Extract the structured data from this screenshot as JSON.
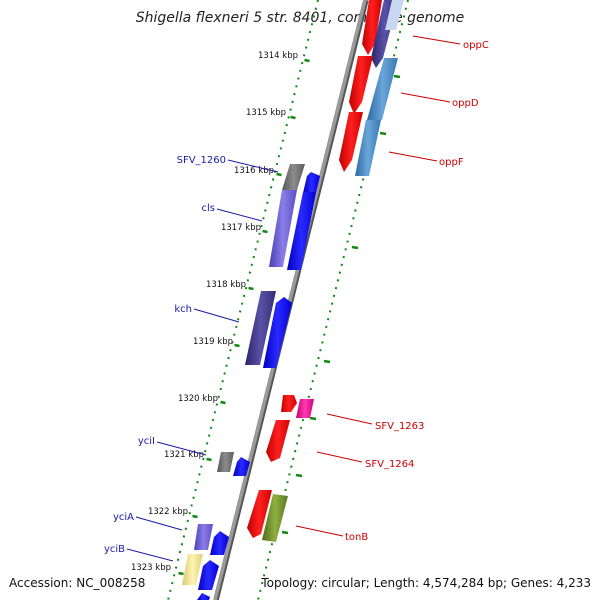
{
  "title": "Shigella flexneri 5 str. 8401, complete genome",
  "footer": {
    "accession": "Accession: NC_008258",
    "topology": "Topology: circular; Length: 4,574,284 bp; Genes: 4,233"
  },
  "ticks": [
    {
      "label": "1314 kbp"
    },
    {
      "label": "1315 kbp"
    },
    {
      "label": "1316 kbp"
    },
    {
      "label": "1317 kbp"
    },
    {
      "label": "1318 kbp"
    },
    {
      "label": "1319 kbp"
    },
    {
      "label": "1320 kbp"
    },
    {
      "label": "1321 kbp"
    },
    {
      "label": "1322 kbp"
    },
    {
      "label": "1323 kbp"
    }
  ],
  "gene_labels": [
    {
      "name": "oppC",
      "color": "#cc0000"
    },
    {
      "name": "oppD",
      "color": "#cc0000"
    },
    {
      "name": "oppF",
      "color": "#cc0000"
    },
    {
      "name": "SFV_1260",
      "color": "#1a1aa8"
    },
    {
      "name": "cls",
      "color": "#1a1aa8"
    },
    {
      "name": "kch",
      "color": "#1a1aa8"
    },
    {
      "name": "SFV_1263",
      "color": "#cc0000"
    },
    {
      "name": "SFV_1264",
      "color": "#cc0000"
    },
    {
      "name": "yciI",
      "color": "#1a1aa8"
    },
    {
      "name": "tonB",
      "color": "#cc0000"
    },
    {
      "name": "yciA",
      "color": "#1a1aa8"
    },
    {
      "name": "yciB",
      "color": "#1a1aa8"
    }
  ],
  "colors": {
    "backbone": "#8a8a8a",
    "tick_dots": "#118811",
    "forward_gene": "#0000ff",
    "reverse_gene": "#ff0000",
    "blue_label": "#1a1aa8",
    "red_label": "#cc0000"
  }
}
